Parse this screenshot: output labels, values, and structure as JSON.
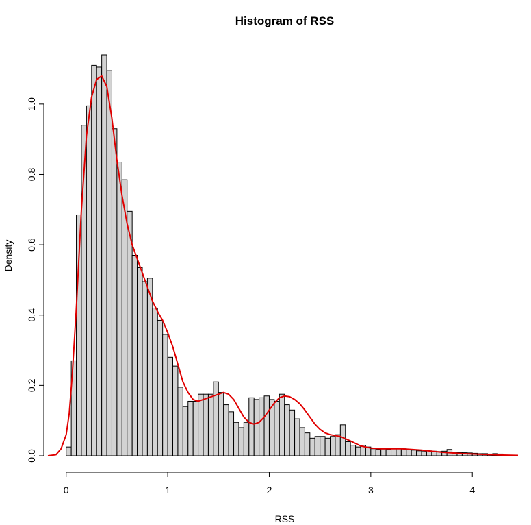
{
  "chart_data": {
    "type": "bar",
    "title": "Histogram of RSS",
    "xlabel": "RSS",
    "ylabel": "Density",
    "xlim": [
      -0.18,
      4.45
    ],
    "ylim": [
      0,
      1.14
    ],
    "x_ticks": [
      0,
      1,
      2,
      3,
      4
    ],
    "y_ticks": [
      0.0,
      0.2,
      0.4,
      0.6,
      0.8,
      1.0
    ],
    "y_tick_labels": [
      "0.0",
      "0.2",
      "0.4",
      "0.6",
      "0.8",
      "1.0"
    ],
    "bin_start": 0.0,
    "bin_width": 0.05,
    "bar_color": "#d3d3d3",
    "values": [
      0.025,
      0.27,
      0.685,
      0.94,
      0.995,
      1.11,
      1.105,
      1.14,
      1.095,
      0.93,
      0.835,
      0.785,
      0.695,
      0.57,
      0.535,
      0.495,
      0.505,
      0.42,
      0.385,
      0.345,
      0.28,
      0.255,
      0.195,
      0.14,
      0.155,
      0.155,
      0.175,
      0.175,
      0.175,
      0.21,
      0.18,
      0.145,
      0.125,
      0.095,
      0.08,
      0.095,
      0.165,
      0.16,
      0.165,
      0.17,
      0.16,
      0.155,
      0.175,
      0.145,
      0.13,
      0.105,
      0.08,
      0.065,
      0.05,
      0.055,
      0.055,
      0.05,
      0.055,
      0.06,
      0.088,
      0.04,
      0.03,
      0.025,
      0.03,
      0.025,
      0.02,
      0.018,
      0.017,
      0.018,
      0.02,
      0.02,
      0.02,
      0.018,
      0.016,
      0.014,
      0.012,
      0.014,
      0.013,
      0.012,
      0.013,
      0.018,
      0.01,
      0.009,
      0.009,
      0.008,
      0.007,
      0.006,
      0.006,
      0.005,
      0.006,
      0.005
    ],
    "density_series": {
      "color": "#e00000",
      "x": [
        -0.18,
        -0.1,
        -0.05,
        0.0,
        0.03,
        0.06,
        0.1,
        0.15,
        0.2,
        0.25,
        0.3,
        0.35,
        0.4,
        0.45,
        0.5,
        0.55,
        0.6,
        0.65,
        0.7,
        0.75,
        0.8,
        0.85,
        0.9,
        0.95,
        1.0,
        1.05,
        1.1,
        1.15,
        1.2,
        1.25,
        1.3,
        1.35,
        1.4,
        1.45,
        1.5,
        1.55,
        1.6,
        1.65,
        1.7,
        1.75,
        1.8,
        1.85,
        1.9,
        1.95,
        2.0,
        2.05,
        2.1,
        2.15,
        2.2,
        2.25,
        2.3,
        2.35,
        2.4,
        2.45,
        2.5,
        2.55,
        2.6,
        2.7,
        2.8,
        2.9,
        3.0,
        3.1,
        3.2,
        3.3,
        3.4,
        3.5,
        3.6,
        3.7,
        3.8,
        3.9,
        4.0,
        4.1,
        4.2,
        4.3,
        4.45
      ],
      "y": [
        0.0,
        0.003,
        0.02,
        0.06,
        0.12,
        0.23,
        0.42,
        0.7,
        0.91,
        1.02,
        1.07,
        1.08,
        1.05,
        0.96,
        0.84,
        0.74,
        0.66,
        0.6,
        0.56,
        0.52,
        0.48,
        0.44,
        0.41,
        0.385,
        0.35,
        0.31,
        0.26,
        0.21,
        0.18,
        0.16,
        0.155,
        0.16,
        0.165,
        0.17,
        0.175,
        0.18,
        0.175,
        0.16,
        0.135,
        0.11,
        0.095,
        0.09,
        0.095,
        0.11,
        0.13,
        0.15,
        0.165,
        0.17,
        0.168,
        0.16,
        0.148,
        0.13,
        0.11,
        0.09,
        0.075,
        0.065,
        0.06,
        0.055,
        0.042,
        0.028,
        0.022,
        0.02,
        0.02,
        0.02,
        0.018,
        0.016,
        0.013,
        0.01,
        0.008,
        0.006,
        0.005,
        0.004,
        0.003,
        0.002,
        0.001
      ]
    }
  }
}
